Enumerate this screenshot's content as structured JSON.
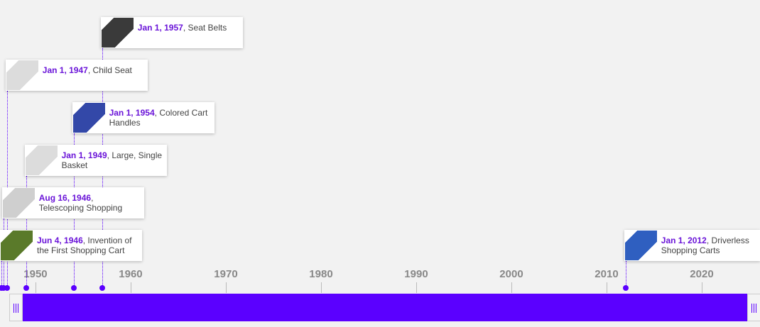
{
  "axis": {
    "range": [
      1946.27,
      2026.12
    ],
    "ticks": [
      1950,
      1960,
      1970,
      1980,
      1990,
      2000,
      2010,
      2020
    ]
  },
  "events": [
    {
      "date": "Jan 1, 1957",
      "title": "Seat Belts"
    },
    {
      "date": "Jan 1, 1947",
      "title": "Child Seat"
    },
    {
      "date": "Jan 1, 1954",
      "title": "Colored Cart Handles"
    },
    {
      "date": "Jan 1, 1949",
      "title": "Large, Single Basket"
    },
    {
      "date": "Aug 16, 1946",
      "title": "Telescoping Shopping"
    },
    {
      "date": "Jun 4, 1946",
      "title": "Invention of the First Shopping Cart"
    },
    {
      "date": "Jan 1, 2012",
      "title": "Driverless Shopping Carts"
    }
  ]
}
